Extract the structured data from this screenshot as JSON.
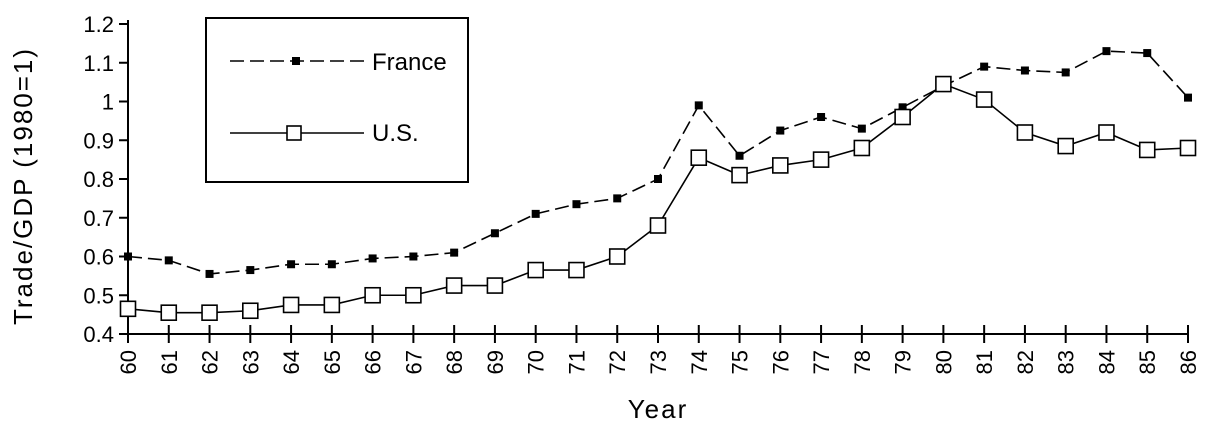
{
  "chart_data": {
    "type": "line",
    "title": "",
    "xlabel": "Year",
    "ylabel": "Trade/GDP    (1980=1)",
    "ylim": [
      0.4,
      1.2
    ],
    "yticks": [
      "0.4",
      "0.5",
      "0.6",
      "0.7",
      "0.8",
      "0.9",
      "1",
      "1.1",
      "1.2"
    ],
    "categories": [
      "60",
      "61",
      "62",
      "63",
      "64",
      "65",
      "66",
      "67",
      "68",
      "69",
      "70",
      "71",
      "72",
      "73",
      "74",
      "75",
      "76",
      "77",
      "78",
      "79",
      "80",
      "81",
      "82",
      "83",
      "84",
      "85",
      "86"
    ],
    "legend_position": "top-left",
    "grid": false,
    "series": [
      {
        "name": "France",
        "marker": "filled-square",
        "line_style": "dashed",
        "values": [
          0.6,
          0.59,
          0.555,
          0.565,
          0.58,
          0.58,
          0.595,
          0.6,
          0.61,
          0.66,
          0.71,
          0.735,
          0.75,
          0.8,
          0.99,
          0.86,
          0.925,
          0.96,
          0.93,
          0.985,
          1.04,
          1.09,
          1.08,
          1.075,
          1.13,
          1.125,
          1.01
        ]
      },
      {
        "name": "U.S.",
        "marker": "hollow-square",
        "line_style": "solid",
        "values": [
          0.465,
          0.455,
          0.455,
          0.46,
          0.475,
          0.475,
          0.5,
          0.5,
          0.525,
          0.525,
          0.565,
          0.565,
          0.6,
          0.68,
          0.855,
          0.81,
          0.835,
          0.85,
          0.88,
          0.96,
          1.045,
          1.005,
          0.92,
          0.885,
          0.92,
          0.875,
          0.88
        ]
      }
    ]
  }
}
